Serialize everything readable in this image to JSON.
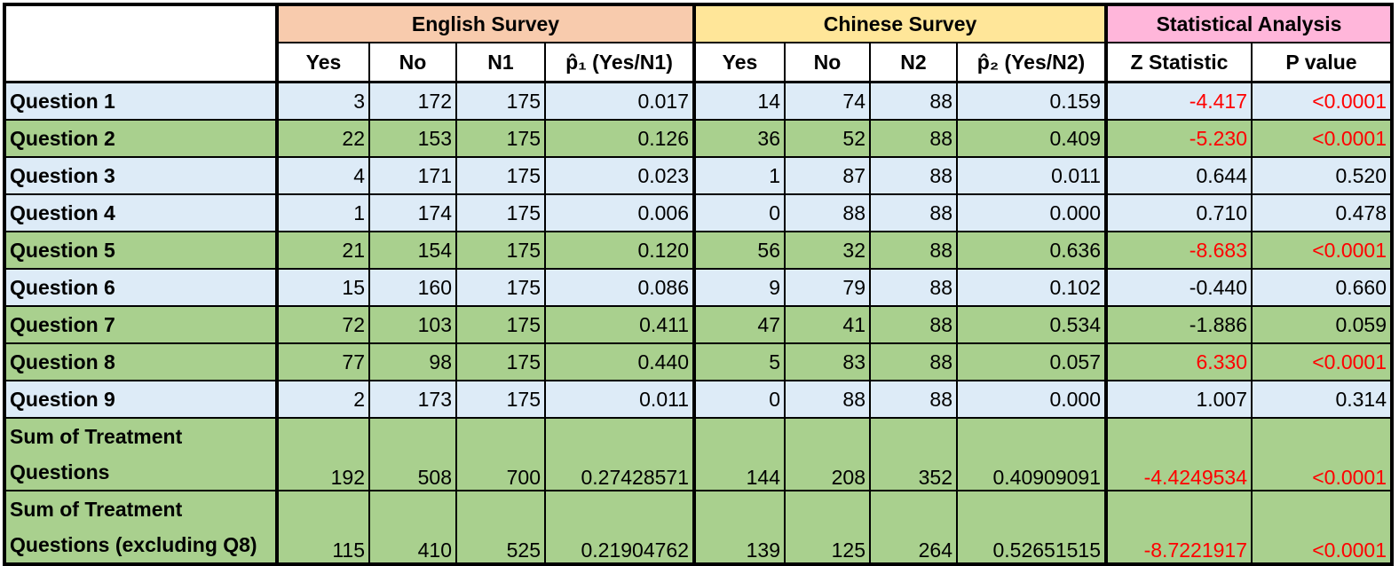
{
  "groups": {
    "english": "English Survey",
    "chinese": "Chinese Survey",
    "stats": "Statistical Analysis"
  },
  "columns": [
    "Yes",
    "No",
    "N1",
    "p̂₁ (Yes/N1)",
    "Yes",
    "No",
    "N2",
    "p̂₂ (Yes/N2)",
    "Z Statistic",
    "P value"
  ],
  "colors": {
    "english": "#F8CBAD",
    "chinese": "#FFE699",
    "stats": "#FFB6DA",
    "row_blue": "#DDEBF7",
    "row_green": "#A9D08E",
    "significant": "#FF0000"
  },
  "rows": [
    {
      "label": "Question 1",
      "shade": "blue",
      "sig": true,
      "cells": [
        "3",
        "172",
        "175",
        "0.017",
        "14",
        "74",
        "88",
        "0.159",
        "-4.417",
        "<0.0001"
      ]
    },
    {
      "label": "Question 2",
      "shade": "green",
      "sig": true,
      "cells": [
        "22",
        "153",
        "175",
        "0.126",
        "36",
        "52",
        "88",
        "0.409",
        "-5.230",
        "<0.0001"
      ]
    },
    {
      "label": "Question 3",
      "shade": "blue",
      "sig": false,
      "cells": [
        "4",
        "171",
        "175",
        "0.023",
        "1",
        "87",
        "88",
        "0.011",
        "0.644",
        "0.520"
      ]
    },
    {
      "label": "Question 4",
      "shade": "blue",
      "sig": false,
      "cells": [
        "1",
        "174",
        "175",
        "0.006",
        "0",
        "88",
        "88",
        "0.000",
        "0.710",
        "0.478"
      ]
    },
    {
      "label": "Question 5",
      "shade": "green",
      "sig": true,
      "cells": [
        "21",
        "154",
        "175",
        "0.120",
        "56",
        "32",
        "88",
        "0.636",
        "-8.683",
        "<0.0001"
      ]
    },
    {
      "label": "Question 6",
      "shade": "blue",
      "sig": false,
      "cells": [
        "15",
        "160",
        "175",
        "0.086",
        "9",
        "79",
        "88",
        "0.102",
        "-0.440",
        "0.660"
      ]
    },
    {
      "label": "Question 7",
      "shade": "green",
      "sig": false,
      "cells": [
        "72",
        "103",
        "175",
        "0.411",
        "47",
        "41",
        "88",
        "0.534",
        "-1.886",
        "0.059"
      ]
    },
    {
      "label": "Question 8",
      "shade": "green",
      "sig": true,
      "cells": [
        "77",
        "98",
        "175",
        "0.440",
        "5",
        "83",
        "88",
        "0.057",
        "6.330",
        "<0.0001"
      ]
    },
    {
      "label": "Question 9",
      "shade": "blue",
      "sig": false,
      "cells": [
        "2",
        "173",
        "175",
        "0.011",
        "0",
        "88",
        "88",
        "0.000",
        "1.007",
        "0.314"
      ]
    },
    {
      "label": "Sum of Treatment Questions",
      "shade": "green",
      "sig": true,
      "tall": true,
      "cells": [
        "192",
        "508",
        "700",
        "0.27428571",
        "144",
        "208",
        "352",
        "0.40909091",
        "-4.4249534",
        "<0.0001"
      ]
    },
    {
      "label": "Sum of Treatment Questions (excluding Q8)",
      "shade": "green",
      "sig": true,
      "tall": true,
      "cells": [
        "115",
        "410",
        "525",
        "0.21904762",
        "139",
        "125",
        "264",
        "0.52651515",
        "-8.7221917",
        "<0.0001"
      ]
    }
  ]
}
